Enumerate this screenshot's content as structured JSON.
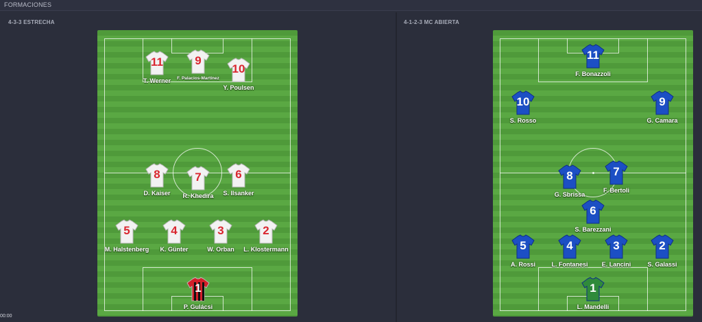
{
  "header": {
    "title": "FORMACIONES"
  },
  "timer": "00:00",
  "colors": {
    "home_shirt": "#f2f2f2",
    "home_number": "#d9262f",
    "away_shirt": "#1c4fc4",
    "away_number": "#ffffff",
    "gk_home": "#d21f29",
    "gk_away": "#2f8a3a",
    "pitch": "#5aa843"
  },
  "left": {
    "formation": "4-3-3 ESTRECHA",
    "players": [
      {
        "number": "11",
        "name": "T. Werner"
      },
      {
        "number": "9",
        "name": "F. Palacios-Martínez"
      },
      {
        "number": "10",
        "name": "Y. Poulsen"
      },
      {
        "number": "8",
        "name": "D. Kaiser"
      },
      {
        "number": "7",
        "name": "R. Khedira"
      },
      {
        "number": "6",
        "name": "S. Ilsanker"
      },
      {
        "number": "5",
        "name": "M. Halstenberg"
      },
      {
        "number": "4",
        "name": "K. Günter"
      },
      {
        "number": "3",
        "name": "W. Orban"
      },
      {
        "number": "2",
        "name": "L. Klostermann"
      },
      {
        "number": "1",
        "name": "P. Gulácsi"
      }
    ]
  },
  "right": {
    "formation": "4-1-2-3 MC ABIERTA",
    "players": [
      {
        "number": "11",
        "name": "F. Bonazzoli"
      },
      {
        "number": "10",
        "name": "S. Rosso"
      },
      {
        "number": "9",
        "name": "G. Camara"
      },
      {
        "number": "8",
        "name": "G. Sbrissa"
      },
      {
        "number": "7",
        "name": "F. Bertoli"
      },
      {
        "number": "6",
        "name": "S. Barezzani"
      },
      {
        "number": "5",
        "name": "A. Rossi"
      },
      {
        "number": "4",
        "name": "L. Fontanesi"
      },
      {
        "number": "3",
        "name": "E. Lancini"
      },
      {
        "number": "2",
        "name": "S. Galassi"
      },
      {
        "number": "1",
        "name": "L. Mandelli"
      }
    ]
  }
}
